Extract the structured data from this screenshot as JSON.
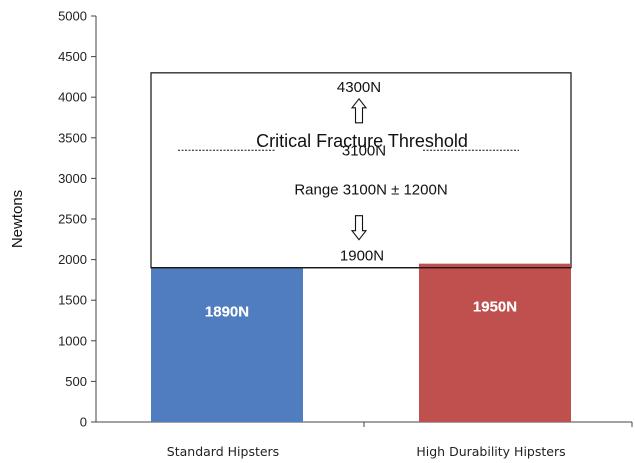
{
  "chart_data": {
    "type": "bar",
    "title": "",
    "xlabel": "",
    "ylabel": "Newtons",
    "ylim": [
      0,
      5000
    ],
    "yticks": [
      0,
      500,
      1000,
      1500,
      2000,
      2500,
      3000,
      3500,
      4000,
      4500,
      5000
    ],
    "categories": [
      "Standard Hipsters",
      "High Durability Hipsters"
    ],
    "values": [
      1890,
      1950
    ],
    "data_labels": [
      "1890N",
      "1950N"
    ],
    "colors": [
      "#4f7dbf",
      "#c0504d"
    ],
    "grid": false,
    "legend": "none",
    "threshold_box": {
      "low": 1900,
      "high": 4300,
      "center": 3100,
      "title": "Critical Fracture Threshold",
      "high_label": "4300N",
      "center_label": "3100N",
      "range_label": "Range 3100N ± 1200N",
      "low_label": "1900N"
    }
  }
}
